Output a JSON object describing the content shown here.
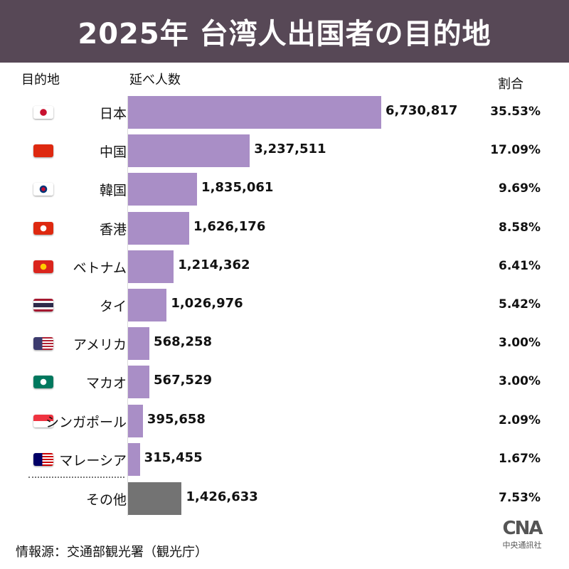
{
  "title": "2025年 台湾人出国者の目的地",
  "chart_data": {
    "type": "bar",
    "orientation": "horizontal",
    "title": "2025年 台湾人出国者の目的地",
    "category_header": "目的地",
    "value_header": "延べ人数",
    "share_header": "割合",
    "categories": [
      "日本",
      "中国",
      "韓国",
      "香港",
      "ベトナム",
      "タイ",
      "アメリカ",
      "マカオ",
      "シンガポール",
      "マレーシア",
      "その他"
    ],
    "flags": [
      "japan",
      "china",
      "south-korea",
      "hong-kong",
      "vietnam",
      "thailand",
      "usa",
      "macau",
      "singapore",
      "malaysia",
      ""
    ],
    "values": [
      6730817,
      3237511,
      1835061,
      1626176,
      1214362,
      1026976,
      568258,
      567529,
      395658,
      315455,
      1426633
    ],
    "value_labels": [
      "6,730,817",
      "3,237,511",
      "1,835,061",
      "1,626,176",
      "1,214,362",
      "1,026,976",
      "568,258",
      "567,529",
      "395,658",
      "315,455",
      "1,426,633"
    ],
    "shares": [
      "35.53%",
      "17.09%",
      "9.69%",
      "8.58%",
      "6.41%",
      "5.42%",
      "3.00%",
      "3.00%",
      "2.09%",
      "1.67%",
      "7.53%"
    ],
    "colors": {
      "bar": "#a98ec6",
      "other": "#737373",
      "title_bg": "#574856"
    }
  },
  "source": "情報源：交通部観光署（観光庁）",
  "logo": {
    "mark": "CNA",
    "name": "中央通訊社"
  }
}
